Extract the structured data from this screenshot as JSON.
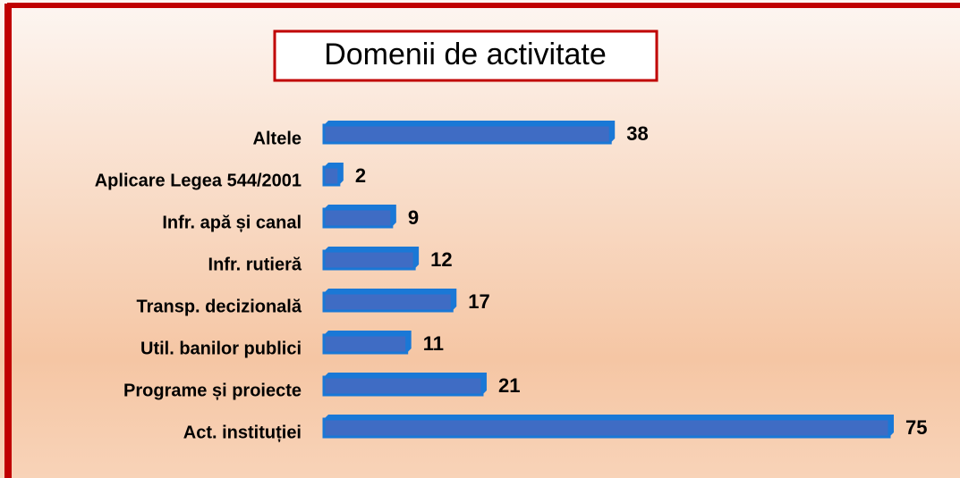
{
  "chart_data": {
    "type": "hbar",
    "title": "Domenii de activitate",
    "categories": [
      "Altele",
      "Aplicare Legea 544/2001",
      "Infr. apă și canal",
      "Infr. rutieră",
      "Transp. decizională",
      "Util. banilor publici",
      "Programe și proiecte",
      "Act. instituției"
    ],
    "values": [
      38,
      2,
      9,
      12,
      17,
      11,
      21,
      75
    ],
    "color": "#3f6cc4",
    "edge_color": "#1a78d6"
  }
}
